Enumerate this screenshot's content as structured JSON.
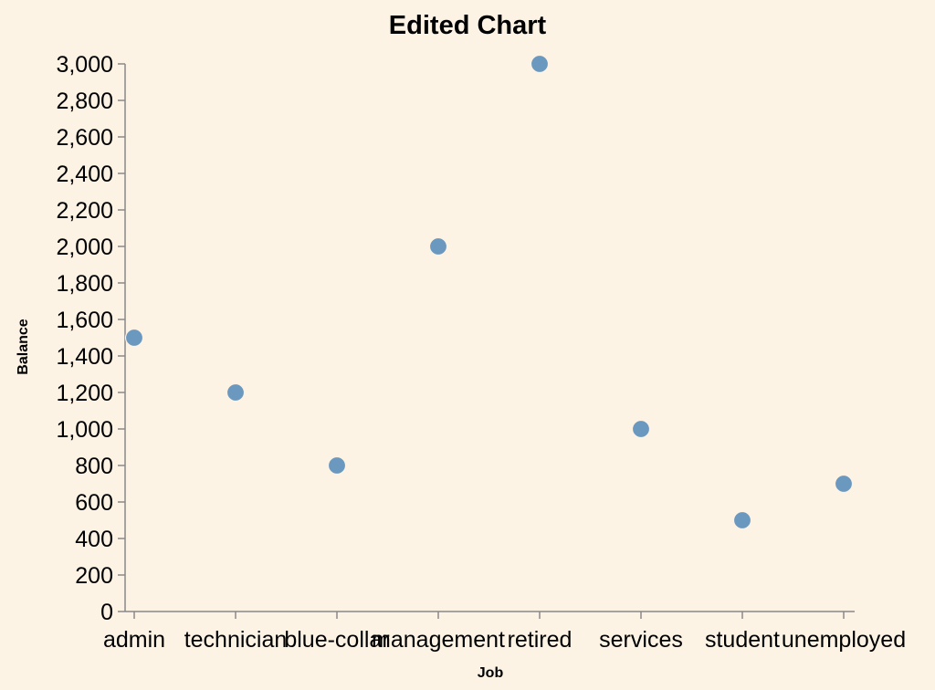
{
  "chart_data": {
    "type": "scatter",
    "title": "Edited Chart",
    "xlabel": "Job",
    "ylabel": "Balance",
    "categories": [
      "admin",
      "technician",
      "blue-collar",
      "management",
      "retired",
      "services",
      "student",
      "unemployed"
    ],
    "values": [
      1500,
      1200,
      800,
      2000,
      3000,
      1000,
      500,
      700
    ],
    "ylim": [
      0,
      3000
    ],
    "yticks": [
      0,
      200,
      400,
      600,
      800,
      1000,
      1200,
      1400,
      1600,
      1800,
      2000,
      2200,
      2400,
      2600,
      2800,
      3000
    ],
    "ytick_labels": [
      "0",
      "200",
      "400",
      "600",
      "800",
      "1,000",
      "1,200",
      "1,400",
      "1,600",
      "1,800",
      "2,000",
      "2,200",
      "2,400",
      "2,600",
      "2,800",
      "3,000"
    ],
    "grid": false,
    "point_color": "#6b98bf",
    "background": "#fdf3e5"
  }
}
